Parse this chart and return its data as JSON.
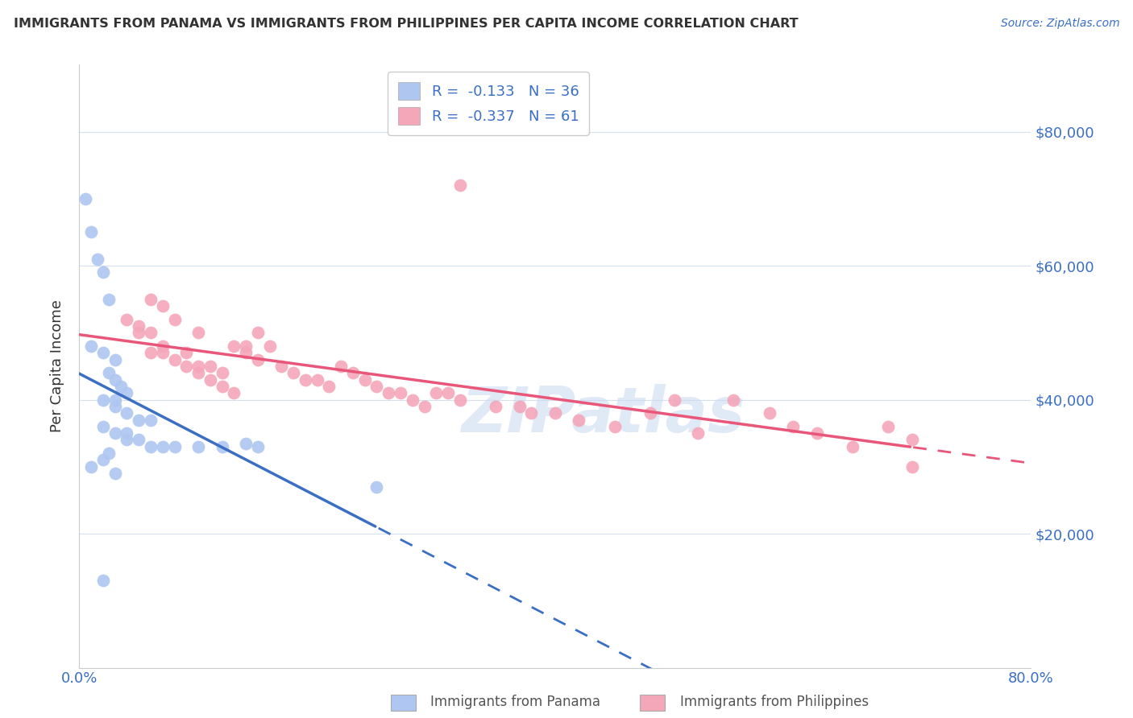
{
  "title": "IMMIGRANTS FROM PANAMA VS IMMIGRANTS FROM PHILIPPINES PER CAPITA INCOME CORRELATION CHART",
  "source": "Source: ZipAtlas.com",
  "ylabel": "Per Capita Income",
  "panama_R": -0.133,
  "panama_N": 36,
  "philippines_R": -0.337,
  "philippines_N": 61,
  "panama_color": "#aec6f0",
  "philippines_color": "#f4a7b9",
  "panama_line_color": "#3a6fc4",
  "philippines_line_color": "#e8567a",
  "background_color": "#ffffff",
  "grid_color": "#d4dff0",
  "watermark": "ZIPatlas",
  "panama_scatter_x": [
    0.005,
    0.01,
    0.015,
    0.02,
    0.025,
    0.01,
    0.02,
    0.03,
    0.025,
    0.03,
    0.035,
    0.04,
    0.02,
    0.03,
    0.03,
    0.04,
    0.05,
    0.06,
    0.02,
    0.03,
    0.04,
    0.05,
    0.04,
    0.06,
    0.07,
    0.08,
    0.1,
    0.12,
    0.14,
    0.15,
    0.01,
    0.03,
    0.025,
    0.02,
    0.25,
    0.02
  ],
  "panama_scatter_y": [
    70000,
    65000,
    61000,
    59000,
    55000,
    48000,
    47000,
    46000,
    44000,
    43000,
    42000,
    41000,
    40000,
    40000,
    39000,
    38000,
    37000,
    37000,
    36000,
    35000,
    35000,
    34000,
    34000,
    33000,
    33000,
    33000,
    33000,
    33000,
    33500,
    33000,
    30000,
    29000,
    32000,
    31000,
    27000,
    13000
  ],
  "philippines_scatter_x": [
    0.32,
    0.05,
    0.06,
    0.07,
    0.06,
    0.07,
    0.08,
    0.09,
    0.1,
    0.1,
    0.11,
    0.12,
    0.13,
    0.14,
    0.14,
    0.15,
    0.15,
    0.16,
    0.17,
    0.18,
    0.19,
    0.2,
    0.21,
    0.22,
    0.23,
    0.24,
    0.25,
    0.26,
    0.27,
    0.28,
    0.29,
    0.3,
    0.31,
    0.32,
    0.35,
    0.37,
    0.38,
    0.4,
    0.42,
    0.45,
    0.48,
    0.5,
    0.52,
    0.55,
    0.58,
    0.6,
    0.62,
    0.65,
    0.68,
    0.7,
    0.04,
    0.05,
    0.06,
    0.07,
    0.08,
    0.09,
    0.1,
    0.11,
    0.12,
    0.13,
    0.7
  ],
  "philippines_scatter_y": [
    72000,
    51000,
    55000,
    54000,
    50000,
    48000,
    52000,
    47000,
    45000,
    50000,
    45000,
    44000,
    48000,
    47000,
    48000,
    46000,
    50000,
    48000,
    45000,
    44000,
    43000,
    43000,
    42000,
    45000,
    44000,
    43000,
    42000,
    41000,
    41000,
    40000,
    39000,
    41000,
    41000,
    40000,
    39000,
    39000,
    38000,
    38000,
    37000,
    36000,
    38000,
    40000,
    35000,
    40000,
    38000,
    36000,
    35000,
    33000,
    36000,
    34000,
    52000,
    50000,
    47000,
    47000,
    46000,
    45000,
    44000,
    43000,
    42000,
    41000,
    30000
  ]
}
